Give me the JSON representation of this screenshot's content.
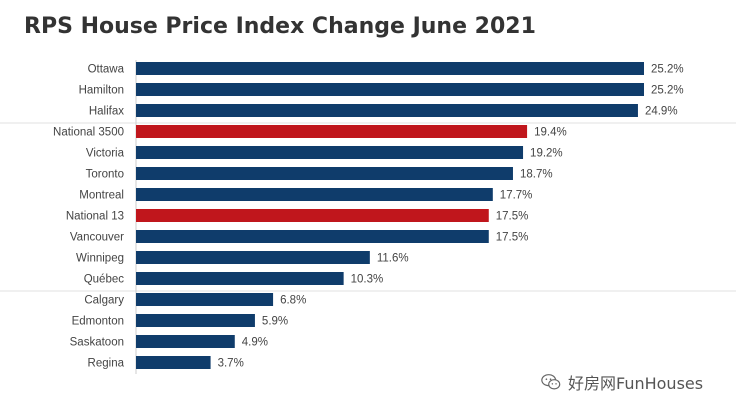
{
  "chart_data": {
    "type": "bar",
    "orientation": "horizontal",
    "title": "RPS House Price Index Change June 2021",
    "xlabel": "",
    "ylabel": "",
    "xlim": [
      0,
      26
    ],
    "grid": false,
    "categories": [
      "Ottawa",
      "Hamilton",
      "Halifax",
      "National 3500",
      "Victoria",
      "Toronto",
      "Montreal",
      "National 13",
      "Vancouver",
      "Winnipeg",
      "Québec",
      "Calgary",
      "Edmonton",
      "Saskatoon",
      "Regina"
    ],
    "values": [
      25.2,
      25.2,
      24.9,
      19.4,
      19.2,
      18.7,
      17.7,
      17.5,
      17.5,
      11.6,
      10.3,
      6.8,
      5.9,
      4.9,
      3.7
    ],
    "value_labels": [
      "25.2%",
      "25.2%",
      "24.9%",
      "19.4%",
      "19.2%",
      "18.7%",
      "17.7%",
      "17.5%",
      "17.5%",
      "11.6%",
      "10.3%",
      "6.8%",
      "5.9%",
      "4.9%",
      "3.7%"
    ],
    "highlight": [
      false,
      false,
      false,
      true,
      false,
      false,
      false,
      true,
      false,
      false,
      false,
      false,
      false,
      false,
      false
    ],
    "colors": {
      "default": "#0f3c6b",
      "highlight": "#c0161c"
    },
    "separators_after": [
      2,
      10
    ]
  },
  "watermark": {
    "text": "好房网FunHouses",
    "icon": "wechat-icon"
  }
}
